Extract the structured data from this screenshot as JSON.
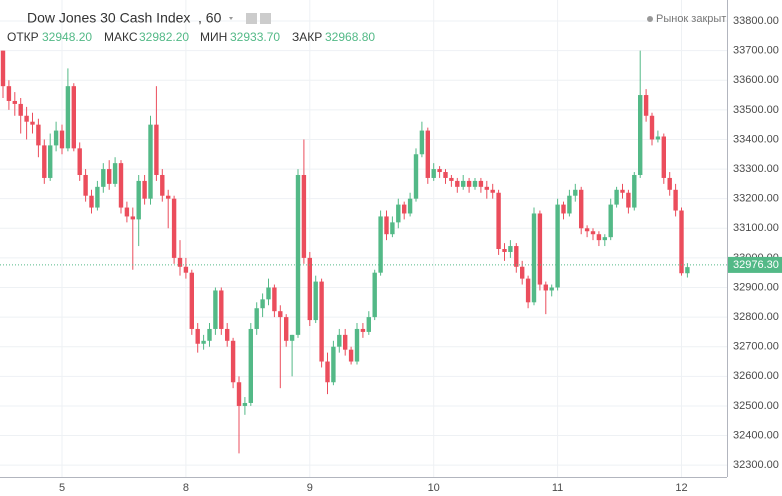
{
  "header": {
    "symbol": "Dow Jones 30 Cash Index",
    "interval": ", 60",
    "status": "Рынок закрыт",
    "ohlc": [
      {
        "label": "ОТКР",
        "value": "32948.20"
      },
      {
        "label": "МАКС",
        "value": "32982.20"
      },
      {
        "label": "МИН",
        "value": "32933.70"
      },
      {
        "label": "ЗАКР",
        "value": "32968.80"
      }
    ]
  },
  "chart_data": {
    "type": "candlestick",
    "categories": [
      null,
      null,
      null,
      null,
      null,
      null,
      null,
      null,
      null,
      null,
      "5",
      null,
      null,
      null,
      null,
      null,
      null,
      null,
      null,
      null,
      null,
      null,
      null,
      null,
      null,
      null,
      null,
      null,
      null,
      null,
      null,
      "8",
      null,
      null,
      null,
      null,
      null,
      null,
      null,
      null,
      null,
      null,
      null,
      null,
      null,
      null,
      null,
      null,
      null,
      null,
      null,
      null,
      "9",
      null,
      null,
      null,
      null,
      null,
      null,
      null,
      null,
      null,
      null,
      null,
      null,
      null,
      null,
      null,
      null,
      null,
      null,
      null,
      null,
      "10",
      null,
      null,
      null,
      null,
      null,
      null,
      null,
      null,
      null,
      null,
      null,
      null,
      null,
      null,
      null,
      null,
      null,
      null,
      null,
      null,
      "11",
      null,
      null,
      null,
      null,
      null,
      null,
      null,
      null,
      null,
      null,
      null,
      null,
      null,
      null,
      null,
      null,
      null,
      null,
      null,
      null,
      "12",
      null
    ],
    "series": {
      "up_color": "#53b987",
      "down_color": "#eb4d5c",
      "open": [
        33700,
        33580,
        33530,
        33520,
        33480,
        33460,
        33450,
        33380,
        33270,
        33380,
        33430,
        33370,
        33580,
        33370,
        33280,
        33210,
        33170,
        33240,
        33300,
        33250,
        33320,
        33170,
        33140,
        33130,
        33260,
        33200,
        33450,
        33280,
        33210,
        33200,
        33000,
        32970,
        32950,
        32760,
        32710,
        32720,
        32760,
        32890,
        32760,
        32720,
        32580,
        32500,
        32510,
        32760,
        32830,
        32860,
        32900,
        32820,
        32800,
        32720,
        32740,
        33280,
        33000,
        32790,
        32920,
        32650,
        32580,
        32700,
        32740,
        32690,
        32650,
        32760,
        32750,
        32800,
        32950,
        33140,
        33080,
        33120,
        33180,
        33150,
        33200,
        33350,
        33430,
        33270,
        33300,
        33290,
        33270,
        33260,
        33240,
        33260,
        33240,
        33260,
        33240,
        33230,
        33220,
        33030,
        33020,
        33040,
        32970,
        32930,
        32850,
        33150,
        32910,
        32890,
        32900,
        33180,
        33150,
        33210,
        33230,
        33100,
        33090,
        33080,
        33060,
        33070,
        33180,
        33230,
        33220,
        33170,
        33280,
        33550,
        33480,
        33400,
        33410,
        33270,
        33230,
        33160,
        32948.2
      ],
      "high": [
        33700,
        33600,
        33560,
        33540,
        33510,
        33490,
        33470,
        33400,
        33420,
        33460,
        33450,
        33640,
        33590,
        33390,
        33300,
        33230,
        33260,
        33320,
        33330,
        33340,
        33330,
        33190,
        33170,
        33280,
        33280,
        33480,
        33580,
        33300,
        33230,
        33210,
        33060,
        33000,
        32960,
        32780,
        32740,
        32780,
        32900,
        32900,
        32780,
        32730,
        32600,
        32530,
        32780,
        32850,
        32880,
        32930,
        32910,
        32840,
        32810,
        32740,
        33300,
        33400,
        33020,
        32940,
        32930,
        32680,
        32720,
        32760,
        32760,
        32700,
        32780,
        32780,
        32820,
        32960,
        33160,
        33160,
        33140,
        33200,
        33190,
        33220,
        33370,
        33460,
        33440,
        33320,
        33310,
        33300,
        33280,
        33270,
        33280,
        33270,
        33270,
        33270,
        33260,
        33250,
        33230,
        33050,
        33060,
        33050,
        32990,
        32940,
        33170,
        33160,
        32920,
        32910,
        33200,
        33190,
        33230,
        33250,
        33240,
        33110,
        33100,
        33090,
        33080,
        33200,
        33240,
        33250,
        33230,
        33290,
        33700,
        33570,
        33490,
        33430,
        33420,
        33290,
        33250,
        33170,
        32982.2
      ],
      "low": [
        33540,
        33500,
        33480,
        33420,
        33400,
        33420,
        33340,
        33250,
        33260,
        33360,
        33350,
        33360,
        33360,
        33260,
        33190,
        33150,
        33160,
        33220,
        33230,
        33240,
        33150,
        33120,
        32960,
        33040,
        33180,
        33180,
        33260,
        33190,
        33100,
        32980,
        32940,
        32930,
        32740,
        32680,
        32690,
        32700,
        32740,
        32740,
        32700,
        32560,
        32340,
        32470,
        32500,
        32740,
        32800,
        32840,
        32800,
        32560,
        32700,
        32600,
        32730,
        32980,
        32770,
        32780,
        32630,
        32540,
        32570,
        32680,
        32670,
        32640,
        32640,
        32730,
        32740,
        32790,
        32940,
        33060,
        33070,
        33100,
        33130,
        33140,
        33190,
        33340,
        33250,
        33260,
        33270,
        33250,
        33240,
        33220,
        33230,
        33220,
        33230,
        33220,
        33200,
        33200,
        33010,
        32990,
        33000,
        32950,
        32910,
        32830,
        32840,
        32890,
        32810,
        32870,
        32890,
        33130,
        33140,
        33190,
        33080,
        33070,
        33060,
        33040,
        33040,
        33060,
        33170,
        33200,
        33150,
        33160,
        33270,
        33460,
        33380,
        33390,
        33250,
        33210,
        33140,
        32940,
        32933.7
      ],
      "close": [
        33580,
        33530,
        33520,
        33480,
        33460,
        33450,
        33380,
        33270,
        33380,
        33430,
        33370,
        33580,
        33370,
        33280,
        33210,
        33170,
        33240,
        33300,
        33250,
        33320,
        33170,
        33140,
        33130,
        33260,
        33200,
        33450,
        33280,
        33210,
        33200,
        33000,
        32970,
        32950,
        32760,
        32710,
        32720,
        32760,
        32890,
        32760,
        32720,
        32580,
        32500,
        32510,
        32760,
        32830,
        32860,
        32900,
        32820,
        32800,
        32720,
        32740,
        33280,
        33000,
        32790,
        32920,
        32650,
        32580,
        32700,
        32740,
        32690,
        32650,
        32760,
        32750,
        32800,
        32950,
        33140,
        33080,
        33120,
        33180,
        33150,
        33200,
        33350,
        33430,
        33270,
        33300,
        33290,
        33270,
        33260,
        33240,
        33260,
        33240,
        33260,
        33240,
        33230,
        33220,
        33030,
        33020,
        33040,
        32970,
        32930,
        32850,
        33150,
        32910,
        32890,
        32900,
        33180,
        33150,
        33210,
        33230,
        33100,
        33090,
        33080,
        33060,
        33070,
        33180,
        33230,
        33220,
        33170,
        33280,
        33550,
        33480,
        33400,
        33410,
        33270,
        33230,
        33160,
        32948.2,
        32968.8
      ]
    },
    "ylim": [
      32260,
      33871
    ],
    "yticks": [
      {
        "value": 32300,
        "label": "32300.00"
      },
      {
        "value": 32400,
        "label": "32400.00"
      },
      {
        "value": 32500,
        "label": "32500.00"
      },
      {
        "value": 32600,
        "label": "32600.00"
      },
      {
        "value": 32700,
        "label": "32700.00"
      },
      {
        "value": 32800,
        "label": "32800.00"
      },
      {
        "value": 32900,
        "label": "32900.00"
      },
      {
        "value": 33000,
        "label": "33000.00"
      },
      {
        "value": 33100,
        "label": "33100.00"
      },
      {
        "value": 33200,
        "label": "33200.00"
      },
      {
        "value": 33300,
        "label": "33300.00"
      },
      {
        "value": 33400,
        "label": "33400.00"
      },
      {
        "value": 33500,
        "label": "33500.00"
      },
      {
        "value": 33600,
        "label": "33600.00"
      },
      {
        "value": 33700,
        "label": "33700.00"
      },
      {
        "value": 33800,
        "label": "33800.00"
      }
    ],
    "last_price": {
      "value": 32976.3,
      "label": "32976.30",
      "color": "#53b987"
    },
    "grid": true
  }
}
